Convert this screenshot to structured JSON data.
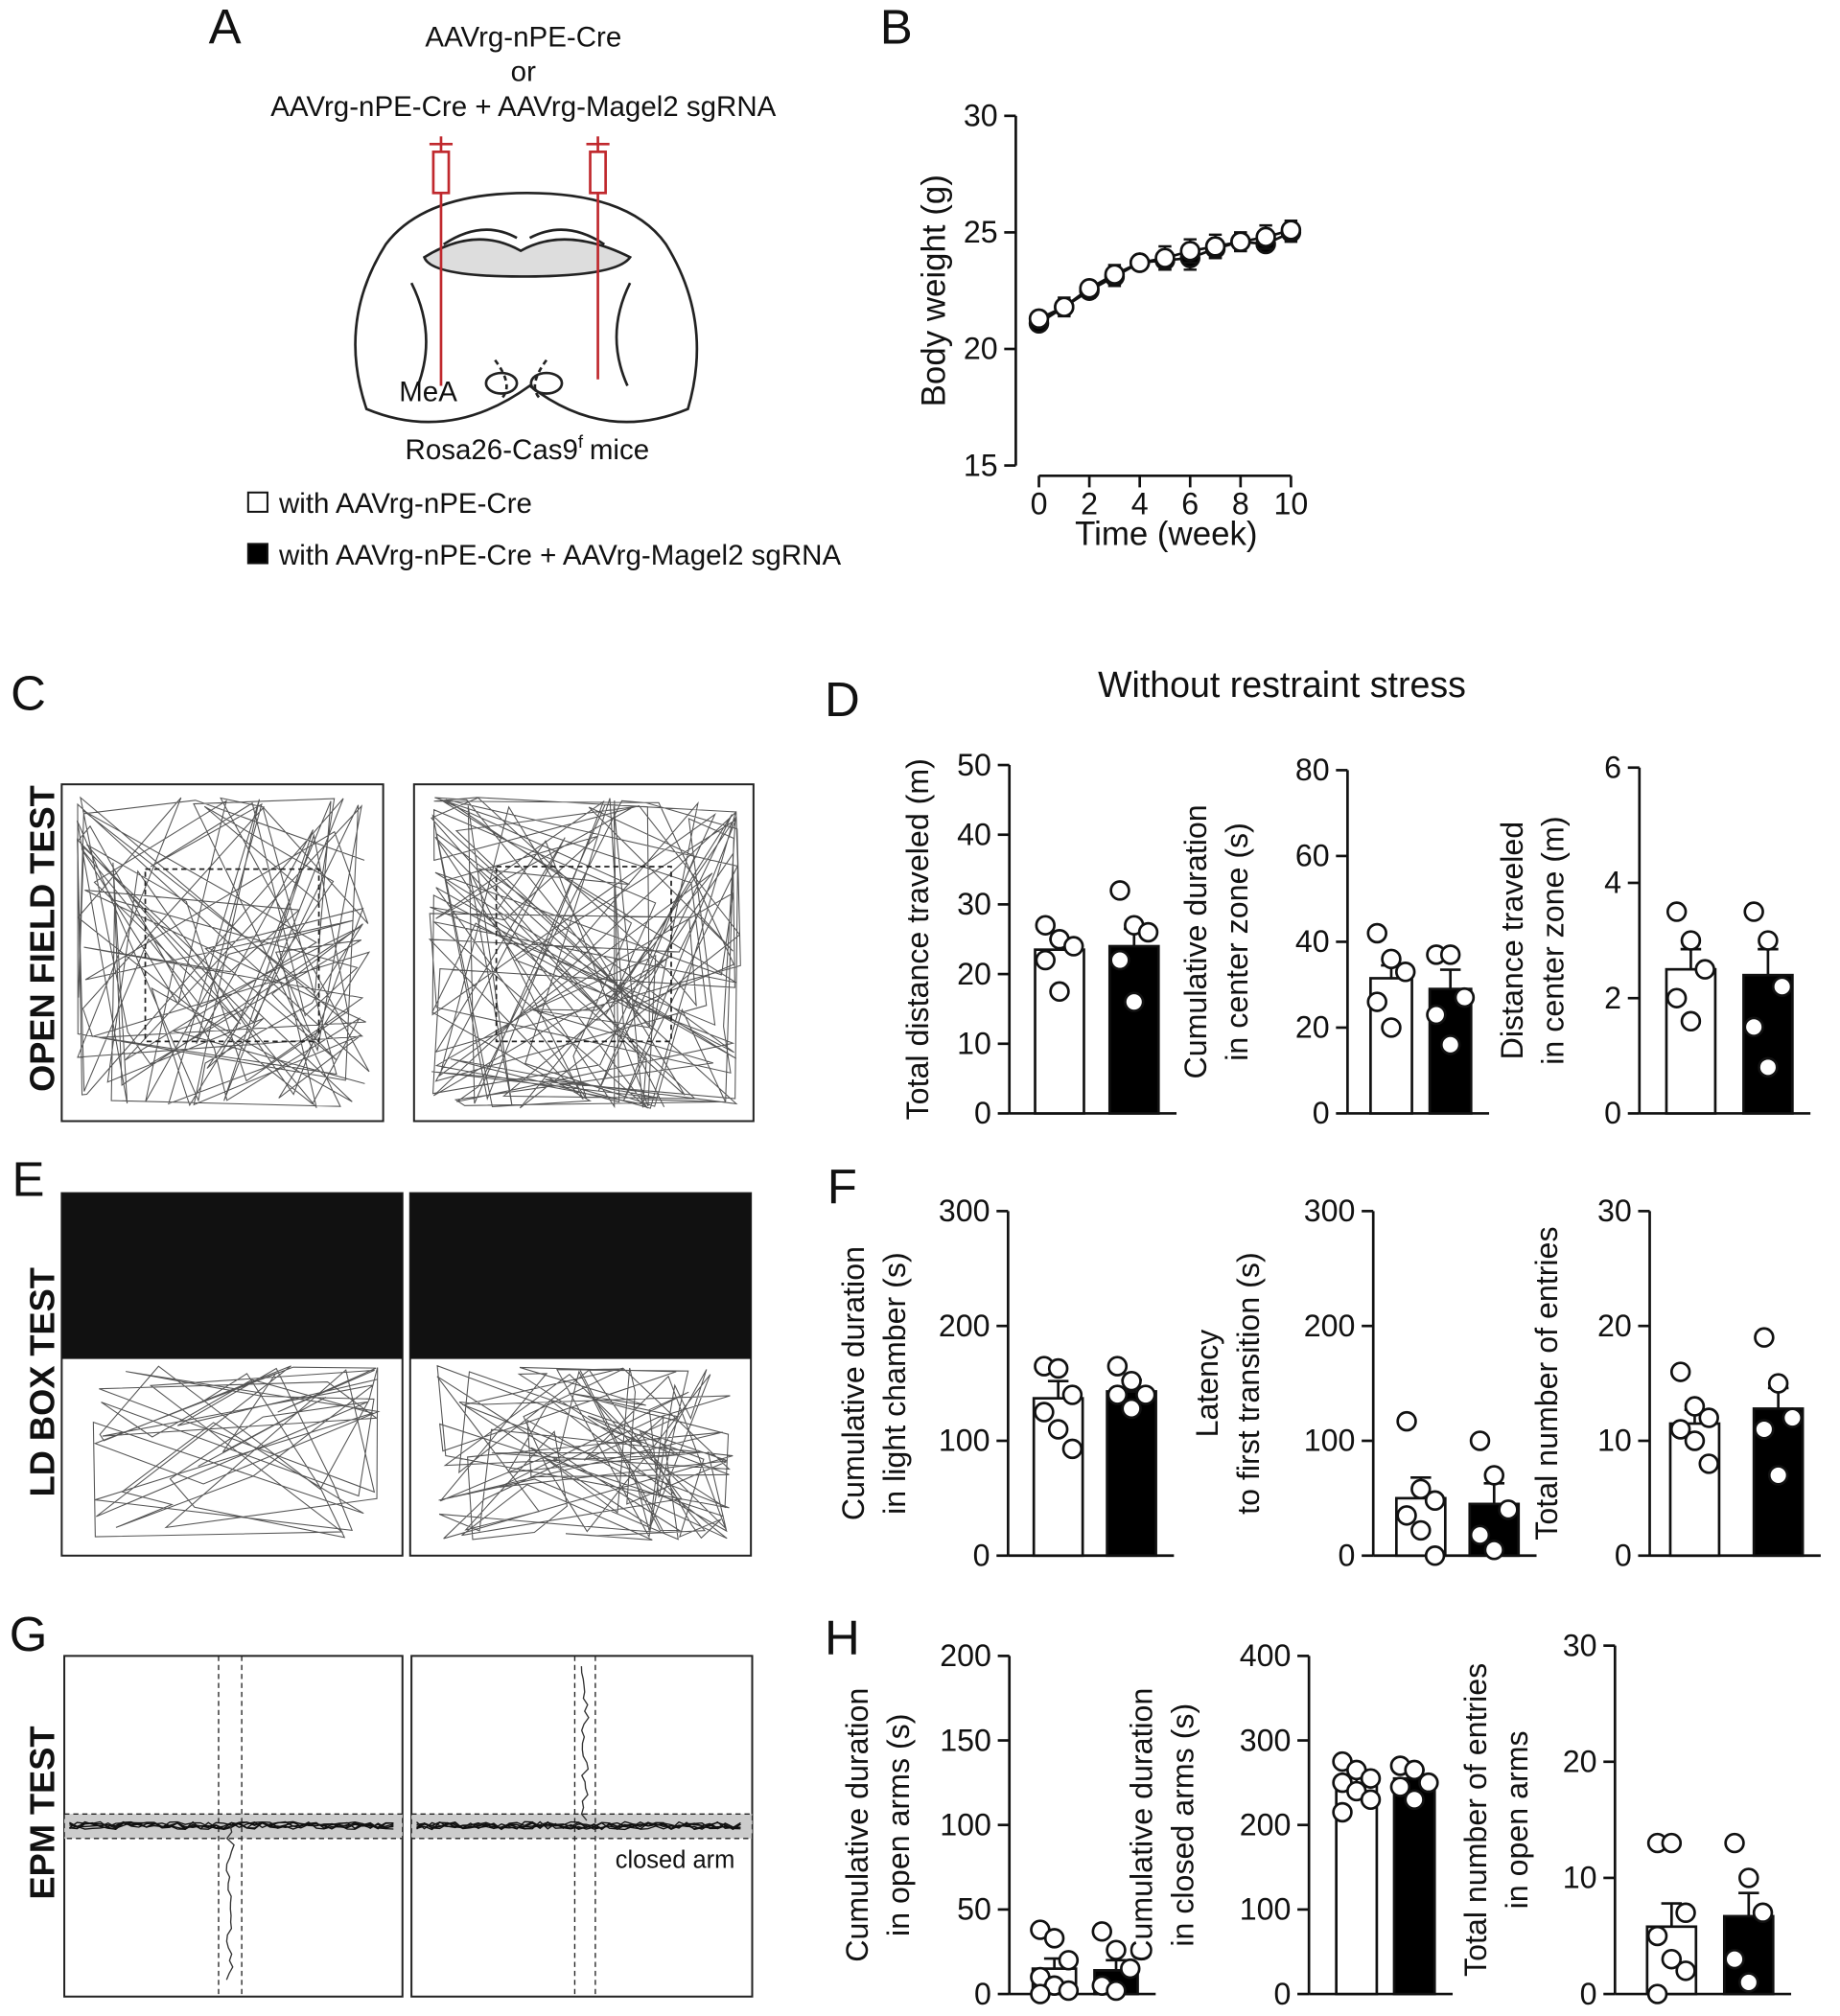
{
  "panel_labels": [
    "A",
    "B",
    "C",
    "D",
    "E",
    "F",
    "G",
    "H"
  ],
  "schematic": {
    "lines": [
      "AAVrg-nPE-Cre",
      "or",
      "AAVrg-nPE-Cre + AAVrg-Magel2 sgRNA"
    ],
    "region": "MeA",
    "mice": [
      "Rosa26-Cas9",
      "f",
      "mice"
    ]
  },
  "section_title": "Without restraint stress",
  "test_labels": [
    "OPEN FIELD TEST",
    "LD BOX TEST",
    "EPM TEST"
  ],
  "trace_annotation": "closed arm",
  "chart_data": [
    {
      "type": "line",
      "xlabel": "Time (week)",
      "ylabel": "Body weight (g)",
      "x": [
        0,
        1,
        2,
        3,
        4,
        5,
        6,
        7,
        8,
        9,
        10
      ],
      "xlim": [
        0,
        10
      ],
      "xticks": [
        0,
        2,
        4,
        6,
        8,
        10
      ],
      "ylim": [
        15,
        30
      ],
      "yticks": [
        15,
        20,
        25,
        30
      ],
      "series": [
        {
          "name": "with AAVrg-nPE-Cre",
          "color": "#ffffff",
          "values": [
            21.3,
            21.8,
            22.6,
            23.2,
            23.7,
            23.9,
            24.2,
            24.4,
            24.6,
            24.8,
            25.1
          ],
          "errors": [
            0.3,
            0.4,
            0.3,
            0.4,
            0.3,
            0.5,
            0.5,
            0.5,
            0.4,
            0.5,
            0.4
          ]
        },
        {
          "name": "with AAVrg-nPE-Cre + AAVrg-Magel2 sgRNA",
          "color": "#000000",
          "values": [
            21.1,
            21.8,
            22.5,
            23.1,
            23.7,
            23.8,
            23.9,
            24.3,
            24.6,
            24.5,
            25.0
          ],
          "errors": [
            0.3,
            0.3,
            0.3,
            0.4,
            0.3,
            0.4,
            0.5,
            0.4,
            0.4,
            0.3,
            0.4
          ]
        }
      ]
    },
    {
      "type": "bar",
      "ylabel": [
        "Total distance traveled (m)"
      ],
      "ylim": [
        0,
        50
      ],
      "yticks": [
        0,
        10,
        20,
        30,
        40,
        50
      ],
      "values": [
        23.5,
        24
      ],
      "errors": [
        1.5,
        2.5
      ],
      "colors": [
        "#ffffff",
        "#000000"
      ],
      "points": [
        [
          27,
          25,
          24,
          22,
          17.5
        ],
        [
          32,
          27,
          26,
          22,
          16
        ]
      ]
    },
    {
      "type": "bar",
      "ylabel": [
        "Cumulative duration",
        "in  center zone (s)"
      ],
      "ylim": [
        0,
        80
      ],
      "yticks": [
        0,
        20,
        40,
        60,
        80
      ],
      "values": [
        31.5,
        29
      ],
      "errors": [
        3,
        4.5
      ],
      "colors": [
        "#ffffff",
        "#000000"
      ],
      "points": [
        [
          42,
          36,
          33,
          26,
          20
        ],
        [
          37,
          37,
          27,
          23,
          16
        ]
      ]
    },
    {
      "type": "bar",
      "ylabel": [
        "Distance traveled",
        "in center zone (m)"
      ],
      "ylim": [
        0,
        6
      ],
      "yticks": [
        0,
        2,
        4,
        6
      ],
      "values": [
        2.5,
        2.4
      ],
      "errors": [
        0.35,
        0.45
      ],
      "colors": [
        "#ffffff",
        "#000000"
      ],
      "points": [
        [
          3.5,
          3.0,
          2.5,
          2.0,
          1.6
        ],
        [
          3.5,
          3.0,
          2.2,
          1.5,
          0.8
        ]
      ]
    },
    {
      "type": "bar",
      "ylabel": [
        "Cumulative duration",
        "in light chamber (s)"
      ],
      "ylim": [
        0,
        300
      ],
      "yticks": [
        0,
        100,
        200,
        300
      ],
      "values": [
        137,
        143
      ],
      "errors": [
        15,
        10
      ],
      "colors": [
        "#ffffff",
        "#000000"
      ],
      "points": [
        [
          165,
          163,
          140,
          125,
          110,
          93
        ],
        [
          165,
          152,
          140,
          140,
          128
        ]
      ]
    },
    {
      "type": "bar",
      "ylabel": [
        "Latency",
        "to first transition (s)"
      ],
      "ylim": [
        0,
        300
      ],
      "yticks": [
        0,
        100,
        200,
        300
      ],
      "values": [
        50,
        45
      ],
      "errors": [
        18,
        18
      ],
      "colors": [
        "#ffffff",
        "#000000"
      ],
      "points": [
        [
          117,
          58,
          48,
          35,
          22,
          0
        ],
        [
          100,
          70,
          40,
          18,
          5
        ]
      ]
    },
    {
      "type": "bar",
      "ylabel": [
        "Total number of entries"
      ],
      "ylim": [
        0,
        30
      ],
      "yticks": [
        0,
        10,
        20,
        30
      ],
      "values": [
        11.5,
        12.8
      ],
      "errors": [
        1.2,
        1.8
      ],
      "colors": [
        "#ffffff",
        "#000000"
      ],
      "points": [
        [
          16,
          13,
          12,
          11,
          10,
          8
        ],
        [
          19,
          15,
          12,
          11,
          7
        ]
      ]
    },
    {
      "type": "bar",
      "ylabel": [
        "Cumulative duration",
        "in open arms (s)"
      ],
      "ylim": [
        0,
        200
      ],
      "yticks": [
        0,
        50,
        100,
        150,
        200
      ],
      "values": [
        15,
        14
      ],
      "errors": [
        6,
        6
      ],
      "colors": [
        "#ffffff",
        "#000000"
      ],
      "points": [
        [
          38,
          33,
          20,
          10,
          5,
          2,
          0
        ],
        [
          37,
          26,
          15,
          5,
          2
        ]
      ]
    },
    {
      "type": "bar",
      "ylabel": [
        "Cumulative duration",
        "in closed arms (s)"
      ],
      "ylim": [
        0,
        400
      ],
      "yticks": [
        0,
        100,
        200,
        300,
        400
      ],
      "values": [
        248,
        255
      ],
      "errors": [
        10,
        10
      ],
      "colors": [
        "#ffffff",
        "#000000"
      ],
      "points": [
        [
          275,
          265,
          255,
          250,
          240,
          230,
          215
        ],
        [
          270,
          265,
          250,
          245,
          230
        ]
      ]
    },
    {
      "type": "bar",
      "ylabel": [
        "Total number of entries",
        "in open arms"
      ],
      "ylim": [
        0,
        30
      ],
      "yticks": [
        0,
        10,
        20,
        30
      ],
      "values": [
        5.8,
        6.7
      ],
      "errors": [
        2,
        2
      ],
      "colors": [
        "#ffffff",
        "#000000"
      ],
      "points": [
        [
          13,
          13,
          7,
          5,
          3,
          2,
          0
        ],
        [
          13,
          10,
          7,
          3,
          1
        ]
      ]
    }
  ]
}
